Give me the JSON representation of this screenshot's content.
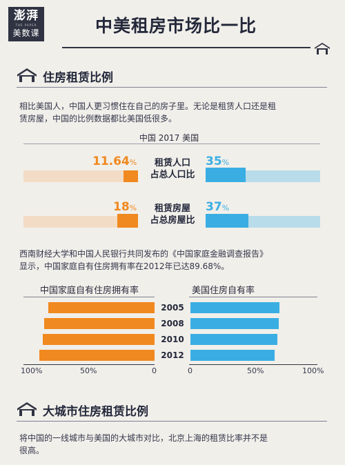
{
  "header": {
    "logo_top": "澎湃",
    "logo_sub": "THE PAPER",
    "logo_bottom": "美数课",
    "title": "中美租房市场比一比"
  },
  "section1": {
    "title": "住房租赁比例",
    "intro_1": "相比美国人，中国人更习惯住在自己的房子里。无论是租赁人口还是租",
    "intro_2": "赁房屋，中国的比例数据都比美国低很多。",
    "legend": "中国  2017  美国",
    "metrics": [
      {
        "label_1": "租赁人口",
        "label_2": "占总人口比",
        "china_value": "11.64",
        "usa_value": "35",
        "china": 11.64,
        "usa": 35
      },
      {
        "label_1": "租赁房屋",
        "label_2": "占总房屋比",
        "china_value": "18",
        "usa_value": "37",
        "china": 18,
        "usa": 37
      }
    ],
    "percent_sign": "%",
    "note_1": "西南财经大学和中国人民银行共同发布的《中国家庭金融调查报告》",
    "note_2": "显示，中国家庭自有住房拥有率在2012年已达89.68%。",
    "left_chart_title": "中国家庭自有住房拥有率",
    "right_chart_title": "美国住房自有率",
    "years": [
      "2005",
      "2008",
      "2010",
      "2012"
    ],
    "china_ownership": [
      83,
      86,
      87,
      89.68
    ],
    "usa_ownership": [
      69,
      68,
      67,
      65
    ],
    "left_ticks": [
      "100%",
      "50%",
      "0"
    ],
    "right_ticks": [
      "0",
      "50%",
      "100%"
    ]
  },
  "section2": {
    "title": "大城市住房租赁比例",
    "intro_1": "将中国的一线城市与美国的大城市对比，北京上海的租赁比率并不是",
    "intro_2": "很高。"
  },
  "colors": {
    "china": "#f0891f",
    "usa": "#3aaee3",
    "dark": "#2f3342"
  }
}
